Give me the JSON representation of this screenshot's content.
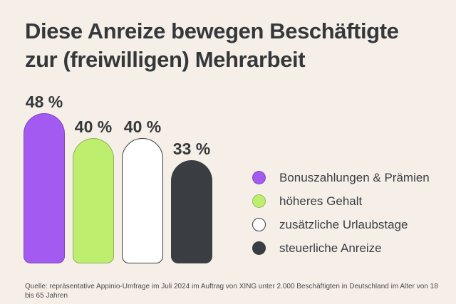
{
  "title": {
    "line1": "Diese Anreize bewegen Beschäftigte",
    "line2": "zur (freiwilligen) Mehrarbeit"
  },
  "source": "Quelle: repräsentative Appinio-Umfrage im Juli 2024 im Auftrag von XING unter 2.000 Beschäftigten in Deutschland im Alter von 18 bis 65 Jahren",
  "colors": {
    "background": "#f6efe8",
    "text_dark": "#35383b",
    "purple": "#a35af0",
    "green": "#bdee6e",
    "white": "#ffffff",
    "dark": "#3a3e42"
  },
  "chart_data": {
    "type": "bar",
    "title": "Diese Anreize bewegen Beschäftigte zur (freiwilligen) Mehrarbeit",
    "categories": [
      "Bonuszahlungen & Prämien",
      "höheres Gehalt",
      "zusätzliche Urlaubstage",
      "steuerliche Anreize"
    ],
    "values": [
      48,
      40,
      40,
      33
    ],
    "value_labels": [
      "48 %",
      "40 %",
      "40 %",
      "33 %"
    ],
    "unit": "%",
    "ylim": [
      0,
      53
    ],
    "grid": false,
    "axis_labels_shown": false,
    "legend_position": "right",
    "bars": [
      {
        "key": "bonuszahlungen-praemien",
        "label": "Bonuszahlungen & Prämien",
        "value": 48,
        "value_label": "48 %",
        "color": "#a35af0",
        "outlined": false
      },
      {
        "key": "hoeheres-gehalt",
        "label": "höheres Gehalt",
        "value": 40,
        "value_label": "40 %",
        "color": "#bdee6e",
        "outlined": false
      },
      {
        "key": "zusaetzliche-urlaubstage",
        "label": "zusätzliche Urlaubstage",
        "value": 40,
        "value_label": "40 %",
        "color": "#ffffff",
        "outlined": true
      },
      {
        "key": "steuerliche-anreize",
        "label": "steuerliche Anreize",
        "value": 33,
        "value_label": "33 %",
        "color": "#3a3e42",
        "outlined": false
      }
    ]
  }
}
